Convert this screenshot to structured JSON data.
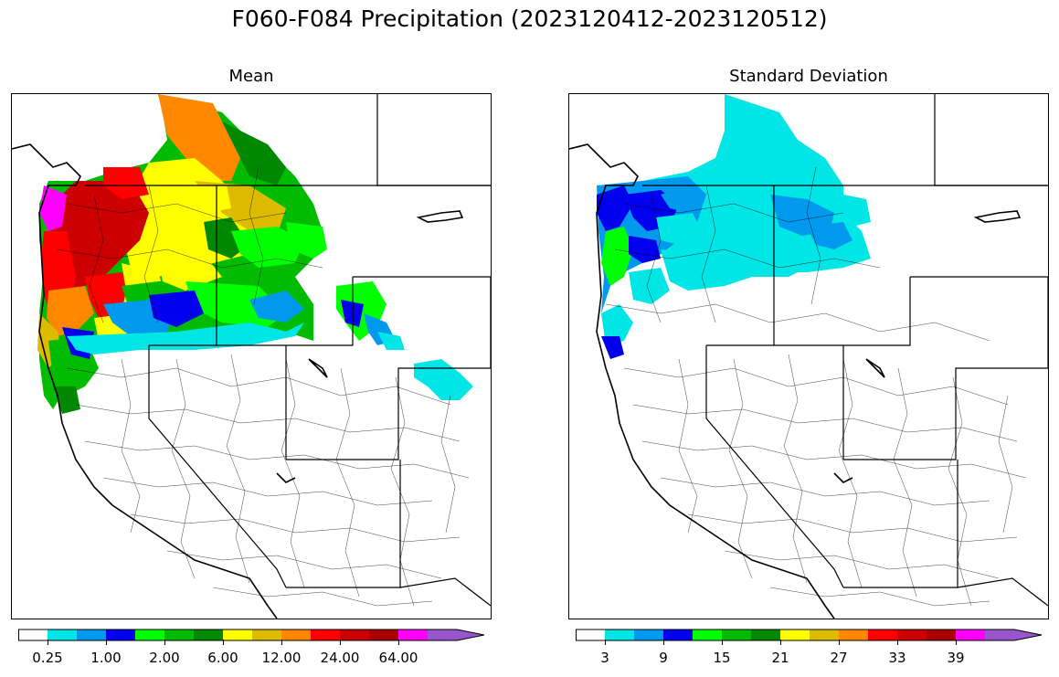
{
  "title": "F060-F084 Precipitation (2023120412-2023120512)",
  "panels": [
    {
      "title": "Mean"
    },
    {
      "title": "Standard Deviation"
    }
  ],
  "colorbar_colors": [
    "#ffffff",
    "#00e5e5",
    "#0099ee",
    "#0000ee",
    "#00ff00",
    "#00bb00",
    "#008800",
    "#ffff00",
    "#ddbb00",
    "#ff8800",
    "#ff0000",
    "#cc0000",
    "#aa0000",
    "#ff00ff",
    "#9955cc"
  ],
  "mean_colorbar": {
    "ticks": [
      "0.25",
      "1.00",
      "2.00",
      "6.00",
      "12.00",
      "24.00",
      "64.00"
    ]
  },
  "std_colorbar": {
    "ticks": [
      "3",
      "9",
      "15",
      "21",
      "27",
      "33",
      "39"
    ]
  }
}
